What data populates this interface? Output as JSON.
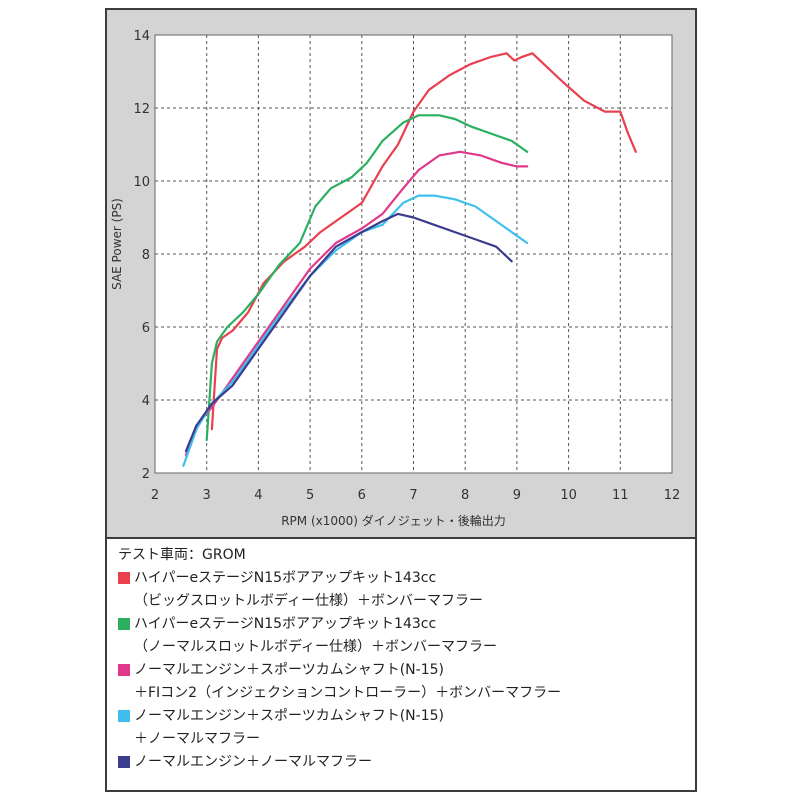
{
  "chart_data": {
    "type": "line",
    "xlabel": "RPM (x1000) ダイノジェット・後輪出力",
    "ylabel": "SAE Power (PS)",
    "xlim": [
      2,
      12
    ],
    "ylim": [
      2,
      14
    ],
    "xticks": [
      2,
      3,
      4,
      5,
      6,
      7,
      8,
      9,
      10,
      11,
      12
    ],
    "yticks": [
      2,
      4,
      6,
      8,
      10,
      12,
      14
    ],
    "grid": true,
    "legend_placement": "below",
    "series": [
      {
        "color": "#e8404f",
        "x": [
          3.1,
          3.2,
          3.3,
          3.5,
          3.8,
          4.1,
          4.5,
          4.9,
          5.2,
          5.6,
          6.0,
          6.4,
          6.7,
          7.0,
          7.3,
          7.7,
          8.1,
          8.5,
          8.8,
          8.95,
          9.1,
          9.3,
          9.6,
          9.9,
          10.3,
          10.7,
          11.0,
          11.15,
          11.3
        ],
        "y": [
          3.2,
          5.4,
          5.7,
          5.9,
          6.4,
          7.2,
          7.8,
          8.2,
          8.6,
          9.0,
          9.4,
          10.4,
          11.0,
          11.9,
          12.5,
          12.9,
          13.2,
          13.4,
          13.5,
          13.3,
          13.4,
          13.5,
          13.1,
          12.7,
          12.2,
          11.9,
          11.9,
          11.3,
          10.8
        ]
      },
      {
        "color": "#2bb061",
        "x": [
          3.0,
          3.1,
          3.2,
          3.4,
          3.7,
          4.0,
          4.4,
          4.8,
          5.1,
          5.4,
          5.8,
          6.1,
          6.4,
          6.8,
          7.1,
          7.5,
          7.8,
          8.1,
          8.5,
          8.9,
          9.2
        ],
        "y": [
          2.9,
          5.0,
          5.6,
          6.0,
          6.4,
          6.9,
          7.7,
          8.3,
          9.3,
          9.8,
          10.1,
          10.5,
          11.1,
          11.6,
          11.8,
          11.8,
          11.7,
          11.5,
          11.3,
          11.1,
          10.8
        ]
      },
      {
        "color": "#e0398c",
        "x": [
          2.6,
          2.8,
          3.1,
          3.5,
          4.0,
          4.5,
          5.0,
          5.5,
          6.0,
          6.4,
          6.8,
          7.1,
          7.5,
          7.9,
          8.3,
          8.7,
          9.0,
          9.2
        ],
        "y": [
          2.5,
          3.3,
          3.8,
          4.6,
          5.6,
          6.6,
          7.6,
          8.3,
          8.7,
          9.1,
          9.8,
          10.3,
          10.7,
          10.8,
          10.7,
          10.5,
          10.4,
          10.4
        ]
      },
      {
        "color": "#3fc0ec",
        "x": [
          2.55,
          2.8,
          3.1,
          3.5,
          4.0,
          4.5,
          5.0,
          5.5,
          6.0,
          6.4,
          6.8,
          7.1,
          7.4,
          7.8,
          8.2,
          8.6,
          9.0,
          9.2
        ],
        "y": [
          2.2,
          3.2,
          3.9,
          4.5,
          5.5,
          6.5,
          7.4,
          8.1,
          8.6,
          8.8,
          9.4,
          9.6,
          9.6,
          9.5,
          9.3,
          8.9,
          8.5,
          8.3
        ]
      },
      {
        "color": "#3c3c8f",
        "x": [
          2.6,
          2.8,
          3.1,
          3.5,
          4.0,
          4.5,
          5.0,
          5.5,
          6.0,
          6.4,
          6.7,
          7.0,
          7.4,
          7.8,
          8.2,
          8.6,
          8.9
        ],
        "y": [
          2.6,
          3.3,
          3.9,
          4.4,
          5.4,
          6.4,
          7.4,
          8.2,
          8.6,
          8.9,
          9.1,
          9.0,
          8.8,
          8.6,
          8.4,
          8.2,
          7.8
        ]
      }
    ]
  },
  "legend": {
    "title": "テスト車両：GROM",
    "entries": [
      {
        "color": "#e8404f",
        "line1": "ハイパーeステージN15ボアアップキット143cc",
        "line2": "（ビッグスロットルボディー仕様）＋ボンバーマフラー"
      },
      {
        "color": "#2bb061",
        "line1": "ハイパーeステージN15ボアアップキット143cc",
        "line2": "（ノーマルスロットルボディー仕様）＋ボンバーマフラー"
      },
      {
        "color": "#e0398c",
        "line1": "ノーマルエンジン＋スポーツカムシャフト(N-15)",
        "line2": "＋FIコン2（インジェクションコントローラー）＋ボンバーマフラー"
      },
      {
        "color": "#3fc0ec",
        "line1": "ノーマルエンジン＋スポーツカムシャフト(N-15)",
        "line2": "＋ノーマルマフラー"
      },
      {
        "color": "#3c3c8f",
        "line1": "ノーマルエンジン＋ノーマルマフラー",
        "line2": ""
      }
    ]
  }
}
